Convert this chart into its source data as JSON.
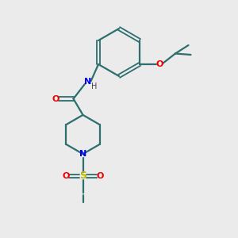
{
  "bg_color": "#ebebeb",
  "bond_color": "#2d6e6e",
  "atom_colors": {
    "N": "#0000ee",
    "O": "#ee0000",
    "S": "#bbbb00",
    "H": "#444444"
  },
  "figsize": [
    3.0,
    3.0
  ],
  "dpi": 100
}
